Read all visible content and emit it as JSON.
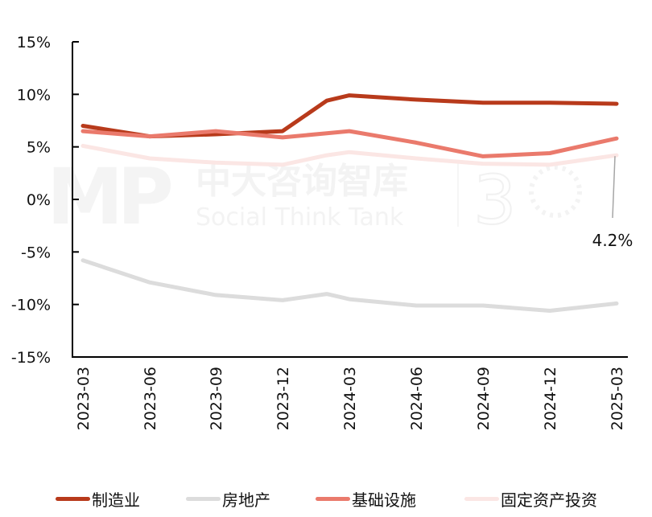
{
  "chart_data": {
    "type": "line",
    "title": "",
    "xlabel": "",
    "ylabel": "",
    "ylim": [
      -15,
      15
    ],
    "yticks": [
      "15%",
      "10%",
      "5%",
      "0%",
      "-5%",
      "-10%",
      "-15%"
    ],
    "ytick_values": [
      15,
      10,
      5,
      0,
      -5,
      -10,
      -15
    ],
    "grid": false,
    "legend_position": "bottom",
    "x": [
      "2023-03",
      "2023-06",
      "2023-09",
      "2023-12",
      "2024-02",
      "2024-03",
      "2024-06",
      "2024-09",
      "2024-12",
      "2025-03"
    ],
    "xtick_labels": [
      "2023-03",
      "2023-06",
      "2023-09",
      "2023-12",
      "2024-03",
      "2024-06",
      "2024-09",
      "2024-12",
      "2025-03"
    ],
    "series": [
      {
        "name": "制造业",
        "color": "#B83A1B",
        "values": [
          7.0,
          6.0,
          6.2,
          6.5,
          9.4,
          9.9,
          9.5,
          9.2,
          9.2,
          9.1
        ]
      },
      {
        "name": "房地产",
        "color": "#DCDCDC",
        "values": [
          -5.8,
          -7.9,
          -9.1,
          -9.6,
          -9.0,
          -9.5,
          -10.1,
          -10.1,
          -10.6,
          -9.9
        ]
      },
      {
        "name": "基础设施",
        "color": "#EA7A6C",
        "values": [
          6.5,
          6.0,
          6.5,
          5.9,
          6.3,
          6.5,
          5.4,
          4.1,
          4.4,
          5.8
        ]
      },
      {
        "name": "固定资产投资",
        "color": "#FBE6E4",
        "values": [
          5.1,
          3.9,
          3.5,
          3.3,
          4.2,
          4.5,
          3.9,
          3.4,
          3.3,
          4.2
        ]
      }
    ],
    "annotations": [
      {
        "series": "固定资产投资",
        "x": "2025-03",
        "text": "4.2%"
      }
    ]
  },
  "watermark": {
    "logo_text": "MP",
    "cn_text": "中大咨询智库",
    "en_text": "Social Think Tank",
    "badge_text": "3"
  },
  "legend": {
    "items": [
      {
        "label": "制造业",
        "color": "#B83A1B"
      },
      {
        "label": "房地产",
        "color": "#DCDCDC"
      },
      {
        "label": "基础设施",
        "color": "#EA7A6C"
      },
      {
        "label": "固定资产投资",
        "color": "#FBE6E4"
      }
    ]
  }
}
